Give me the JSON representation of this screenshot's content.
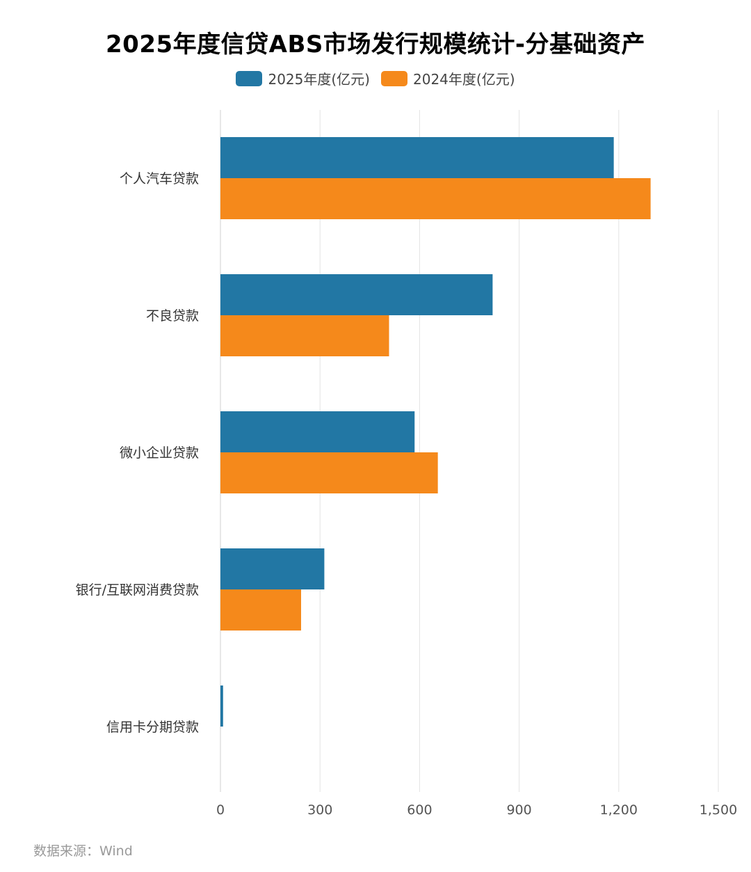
{
  "chart_data": {
    "type": "bar",
    "orientation": "horizontal",
    "title": "2025年度信贷ABS市场发行规模统计-分基础资产",
    "categories": [
      "个人汽车贷款",
      "不良贷款",
      "微小企业贷款",
      "银行/互联网消费贷款",
      "信用卡分期贷款"
    ],
    "series": [
      {
        "name": "2025年度(亿元)",
        "color": "#2277a4",
        "values": [
          1185,
          820,
          585,
          313,
          8
        ]
      },
      {
        "name": "2024年度(亿元)",
        "color": "#f5891b",
        "values": [
          1296,
          508,
          655,
          243,
          0
        ]
      }
    ],
    "xlim": [
      0,
      1500
    ],
    "xticks": [
      "0",
      "300",
      "600",
      "900",
      "1,200",
      "1,500"
    ],
    "grid": true,
    "legend_position": "top"
  },
  "source": "数据来源：Wind"
}
